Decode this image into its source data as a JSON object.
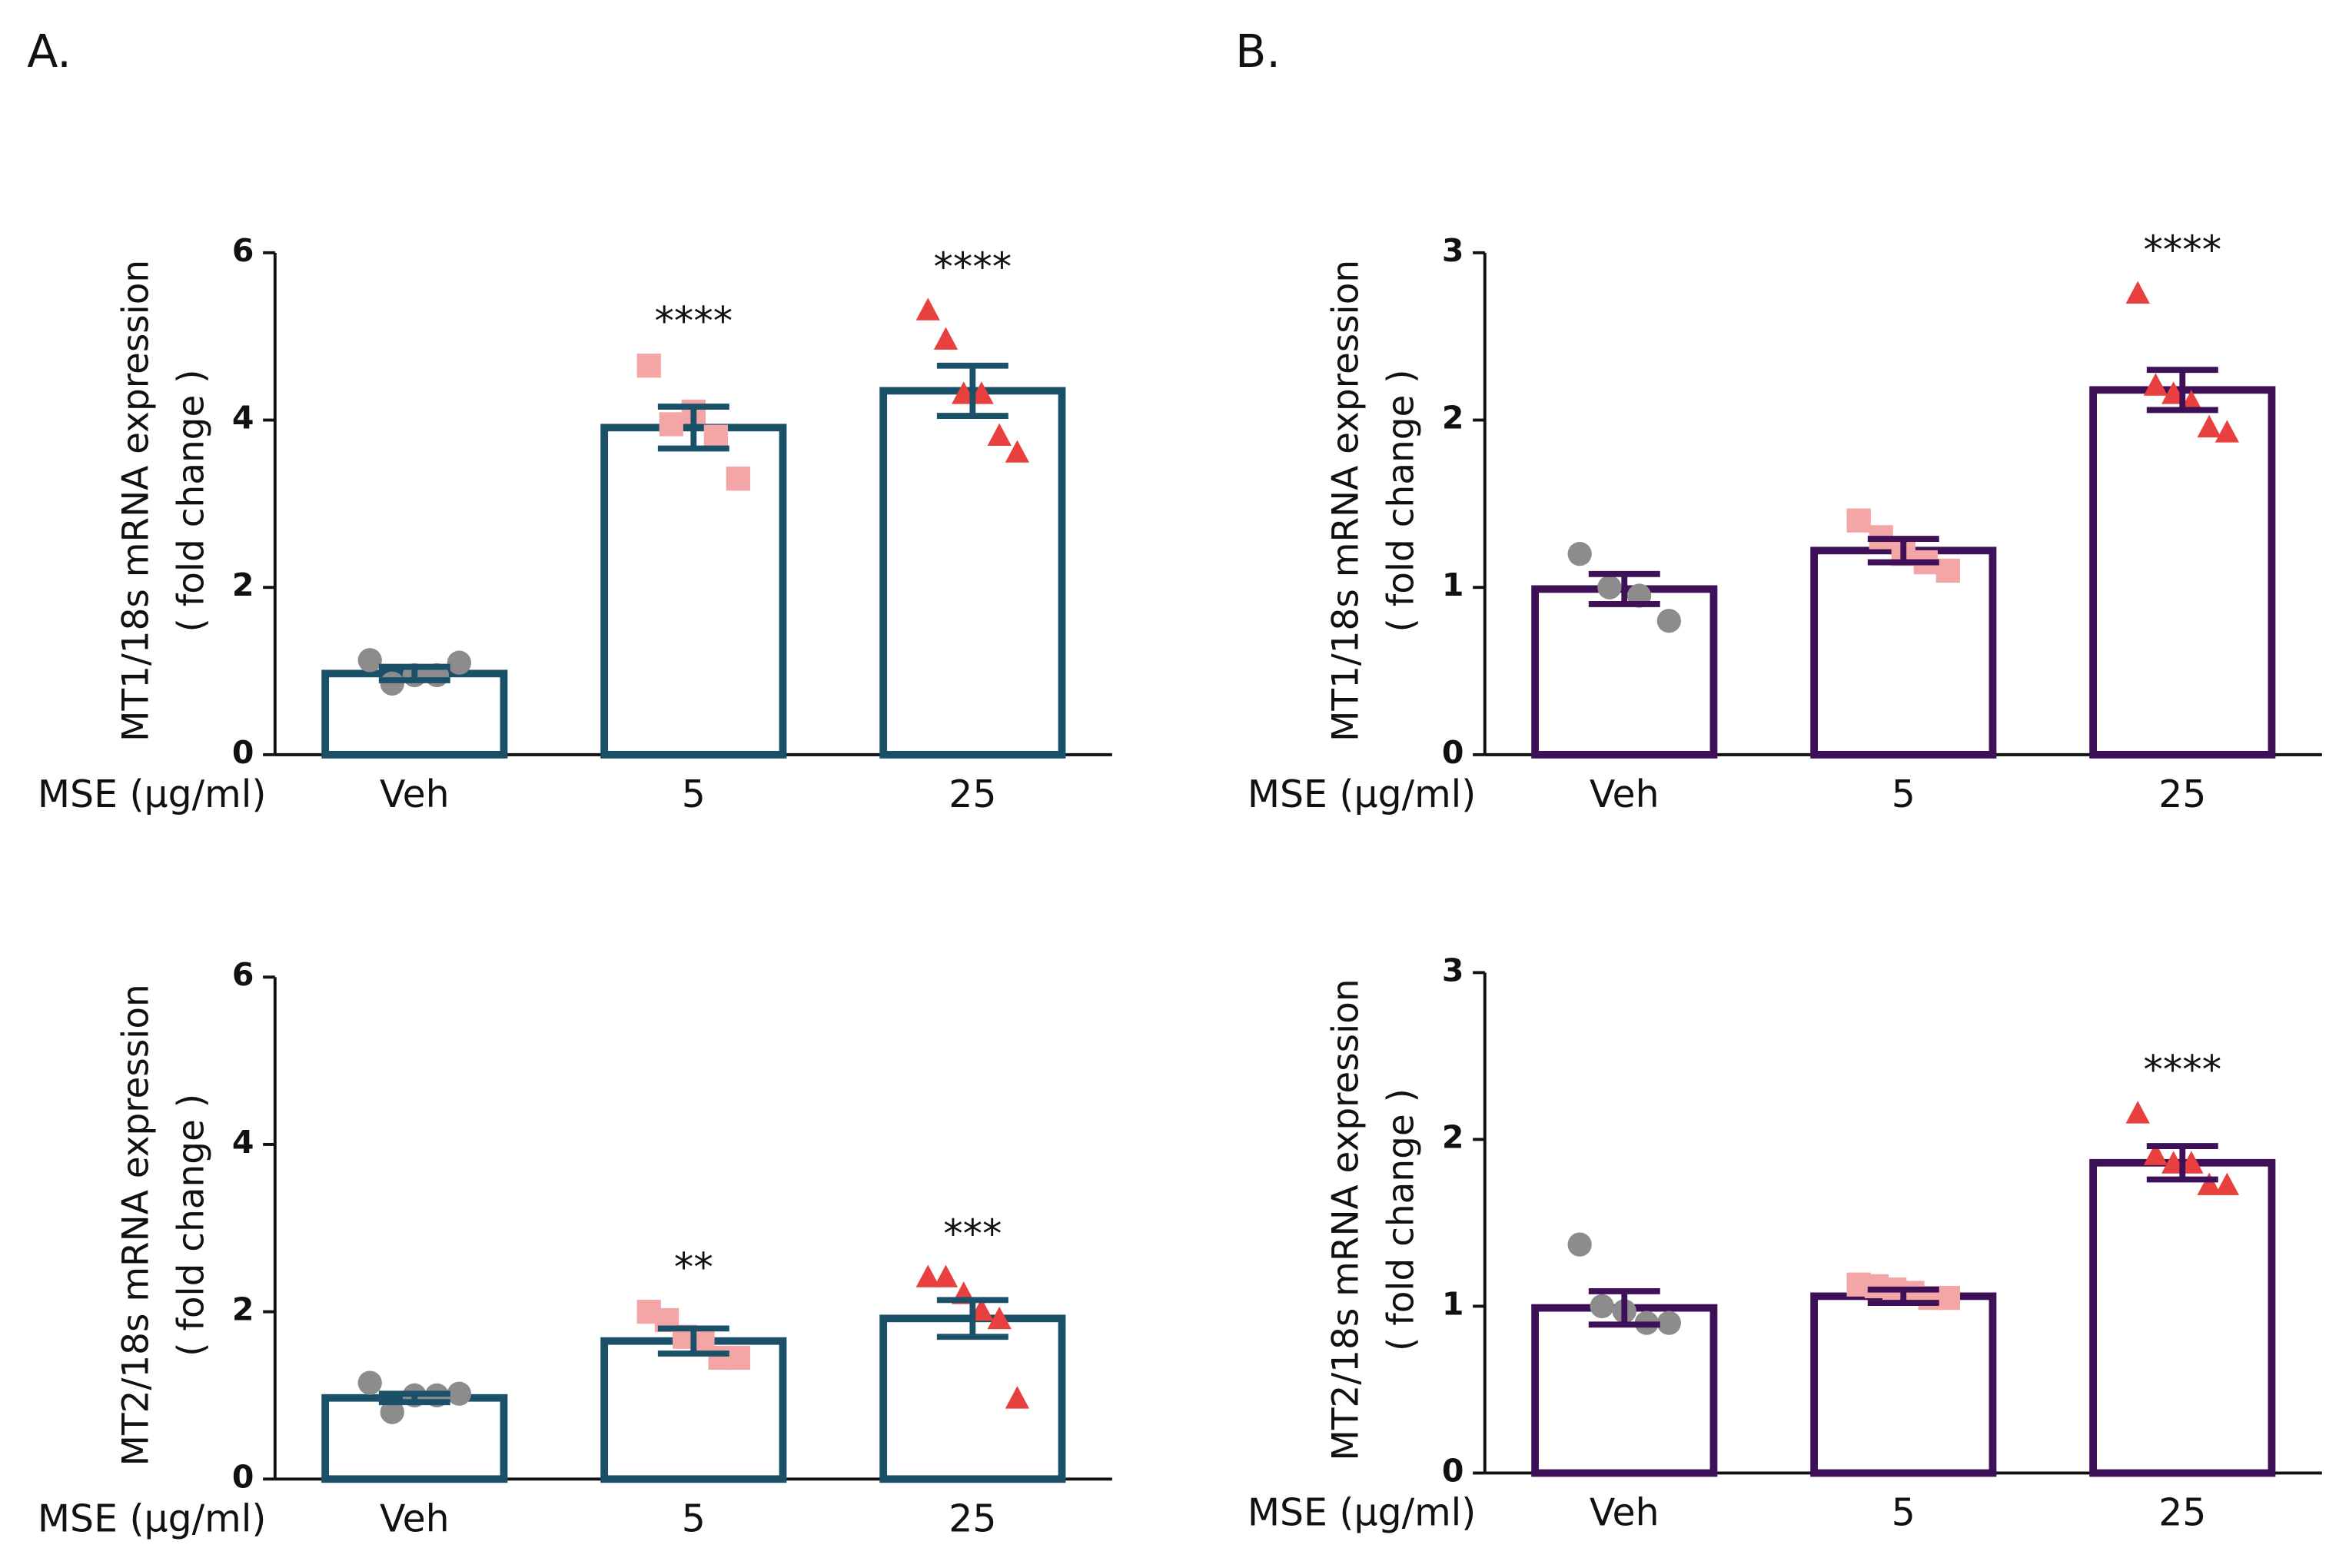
{
  "panels": [
    "A.",
    "B."
  ],
  "chart_data": [
    {
      "type": "bar",
      "ylabel": [
        "MT1/18s mRNA expression",
        "( fold change )"
      ],
      "xlabel": "MSE (µg/ml)",
      "categories": [
        "Veh",
        "5",
        "25"
      ],
      "values": [
        0.97,
        3.91,
        4.35
      ],
      "errors": [
        0.08,
        0.25,
        0.3
      ],
      "points": [
        [
          1.13,
          0.85,
          0.95,
          0.95,
          1.1
        ],
        [
          4.65,
          3.95,
          4.1,
          3.8,
          3.3
        ],
        [
          5.3,
          4.95,
          4.3,
          4.3,
          3.8,
          3.6
        ]
      ],
      "significance": [
        null,
        "****",
        "****"
      ],
      "color": "#1a5068",
      "point_colors": [
        "#8c8c8c",
        "#f4a6a6",
        "#e8403e"
      ],
      "markers": [
        "circle",
        "square",
        "triangle"
      ],
      "ylim": [
        0,
        6
      ],
      "yticks": [
        0,
        2,
        4,
        6
      ]
    },
    {
      "type": "bar",
      "ylabel": [
        "MT2/18s mRNA expression",
        "( fold change )"
      ],
      "xlabel": "MSE (µg/ml)",
      "categories": [
        "Veh",
        "5",
        "25"
      ],
      "values": [
        0.97,
        1.65,
        1.92
      ],
      "errors": [
        0.05,
        0.15,
        0.22
      ],
      "points": [
        [
          1.15,
          0.8,
          1.0,
          1.0,
          1.02
        ],
        [
          2.0,
          1.9,
          1.7,
          1.65,
          1.45,
          1.45
        ],
        [
          2.4,
          2.4,
          2.2,
          2.0,
          1.9,
          0.95
        ]
      ],
      "significance": [
        null,
        "**",
        "***"
      ],
      "color": "#1a5068",
      "point_colors": [
        "#8c8c8c",
        "#f4a6a6",
        "#e8403e"
      ],
      "markers": [
        "circle",
        "square",
        "triangle"
      ],
      "ylim": [
        0,
        6
      ],
      "yticks": [
        0,
        2,
        4,
        6
      ]
    },
    {
      "type": "bar",
      "ylabel": [
        "MT1/18s mRNA expression",
        "( fold change )"
      ],
      "xlabel": "MSE (µg/ml)",
      "categories": [
        "Veh",
        "5",
        "25"
      ],
      "values": [
        0.99,
        1.22,
        2.18
      ],
      "errors": [
        0.09,
        0.07,
        0.12
      ],
      "points": [
        [
          1.2,
          1.0,
          0.95,
          0.8
        ],
        [
          1.4,
          1.3,
          1.2,
          1.15,
          1.1
        ],
        [
          2.75,
          2.2,
          2.15,
          2.1,
          1.95,
          1.92
        ]
      ],
      "significance": [
        null,
        null,
        "****"
      ],
      "color": "#3d1057",
      "point_colors": [
        "#8c8c8c",
        "#f4a6a6",
        "#e8403e"
      ],
      "markers": [
        "circle",
        "square",
        "triangle"
      ],
      "ylim": [
        0,
        3
      ],
      "yticks": [
        0,
        1,
        2,
        3
      ]
    },
    {
      "type": "bar",
      "ylabel": [
        "MT2/18s mRNA expression",
        "( fold change )"
      ],
      "xlabel": "MSE (µg/ml)",
      "categories": [
        "Veh",
        "5",
        "25"
      ],
      "values": [
        0.99,
        1.06,
        1.86
      ],
      "errors": [
        0.1,
        0.04,
        0.1
      ],
      "points": [
        [
          1.37,
          1.0,
          0.97,
          0.9,
          0.9
        ],
        [
          1.13,
          1.12,
          1.1,
          1.08,
          1.05,
          1.05
        ],
        [
          2.15,
          1.9,
          1.85,
          1.85,
          1.72,
          1.72
        ]
      ],
      "significance": [
        null,
        null,
        "****"
      ],
      "color": "#3d1057",
      "point_colors": [
        "#8c8c8c",
        "#f4a6a6",
        "#e8403e"
      ],
      "markers": [
        "circle",
        "square",
        "triangle"
      ],
      "ylim": [
        0,
        3
      ],
      "yticks": [
        0,
        1,
        2,
        3
      ]
    }
  ]
}
